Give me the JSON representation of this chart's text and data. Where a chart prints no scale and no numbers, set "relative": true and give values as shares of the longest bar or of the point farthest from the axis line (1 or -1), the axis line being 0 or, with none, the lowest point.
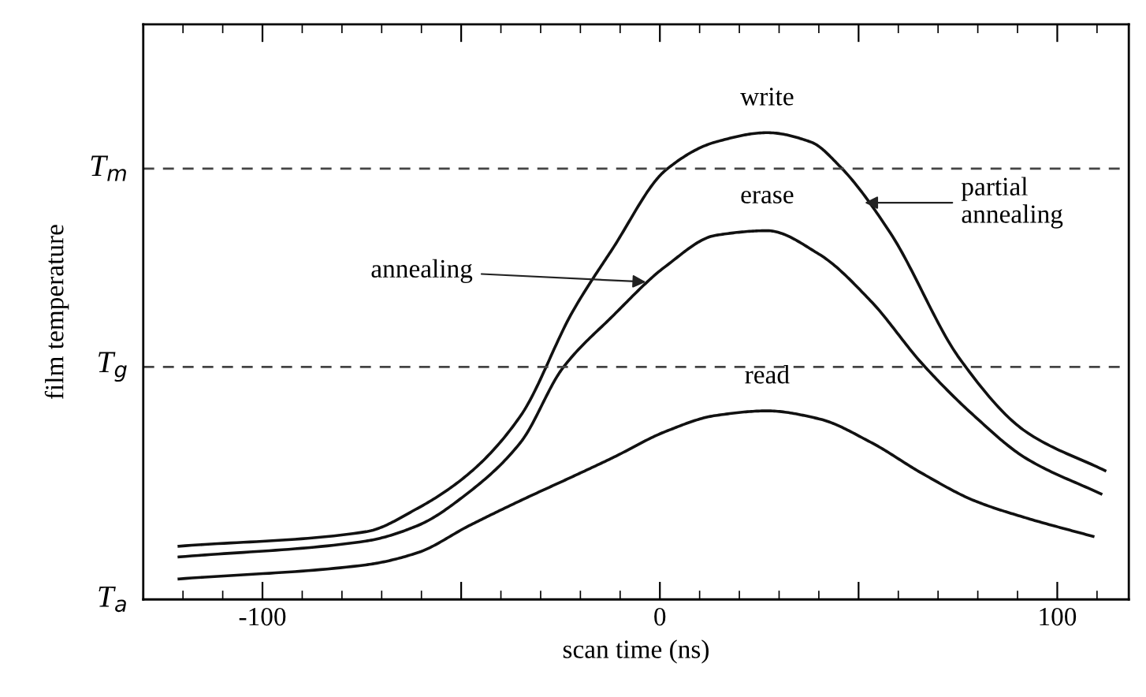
{
  "chart_data": {
    "type": "line",
    "relative": true,
    "xlabel": "scan time (ns)",
    "ylabel": "film temperature",
    "xlim": [
      -130,
      118
    ],
    "xticks": [
      -100,
      {
        "value": -50,
        "label": null
      },
      0,
      {
        "value": 50,
        "label": null
      },
      100
    ],
    "ref_lines": [
      {
        "axis": "y",
        "value": 0.923,
        "label": "T$_{m}$",
        "line_style": "dashed",
        "color": "#444444"
      },
      {
        "axis": "y",
        "value": 0.498,
        "label": "T$_{g}$",
        "line_style": "dashed",
        "color": "#444444"
      }
    ],
    "grid": false,
    "legend": false,
    "marker": "none",
    "line_style": "solid",
    "series": [
      {
        "color": "#111111",
        "x": [
          -121,
          -74,
          -61,
          -48,
          -35,
          -22,
          -12,
          1.5,
          14,
          27,
          38,
          45.5,
          58,
          75.5,
          92,
          112
        ],
        "values": [
          0.114,
          0.145,
          0.195,
          0.27,
          0.394,
          0.616,
          0.75,
          0.92,
          0.98,
          1.0,
          0.98,
          0.926,
          0.785,
          0.515,
          0.36,
          0.276
        ]
      },
      {
        "color": "#111111",
        "x": [
          -121,
          -74,
          -61,
          -48,
          -35,
          -24.5,
          -12,
          1.5,
          14,
          27,
          40,
          53,
          66,
          79,
          92,
          111
        ],
        "values": [
          0.091,
          0.125,
          0.158,
          0.23,
          0.337,
          0.495,
          0.606,
          0.714,
          0.78,
          0.79,
          0.74,
          0.64,
          0.505,
          0.394,
          0.303,
          0.226
        ]
      },
      {
        "color": "#111111",
        "x": [
          -121,
          -74,
          -61,
          -48,
          -35,
          -22,
          -12,
          1.5,
          14,
          27,
          40,
          53,
          66,
          79,
          92,
          109
        ],
        "values": [
          0.044,
          0.074,
          0.1,
          0.158,
          0.212,
          0.263,
          0.303,
          0.36,
          0.394,
          0.404,
          0.387,
          0.337,
          0.27,
          0.212,
          0.175,
          0.135
        ]
      }
    ],
    "annotations": [
      "T$_{a}$",
      {
        "text": "write",
        "x": 27,
        "y": 1.0
      },
      {
        "text": "erase",
        "x": 27,
        "y": 0.79
      },
      {
        "text": "read",
        "x": 27,
        "y": 0.404
      },
      {
        "text": "annealing",
        "x": -3,
        "y": 0.68
      },
      {
        "text": "partial\nannealing",
        "x": 51,
        "y": 0.85
      }
    ]
  }
}
